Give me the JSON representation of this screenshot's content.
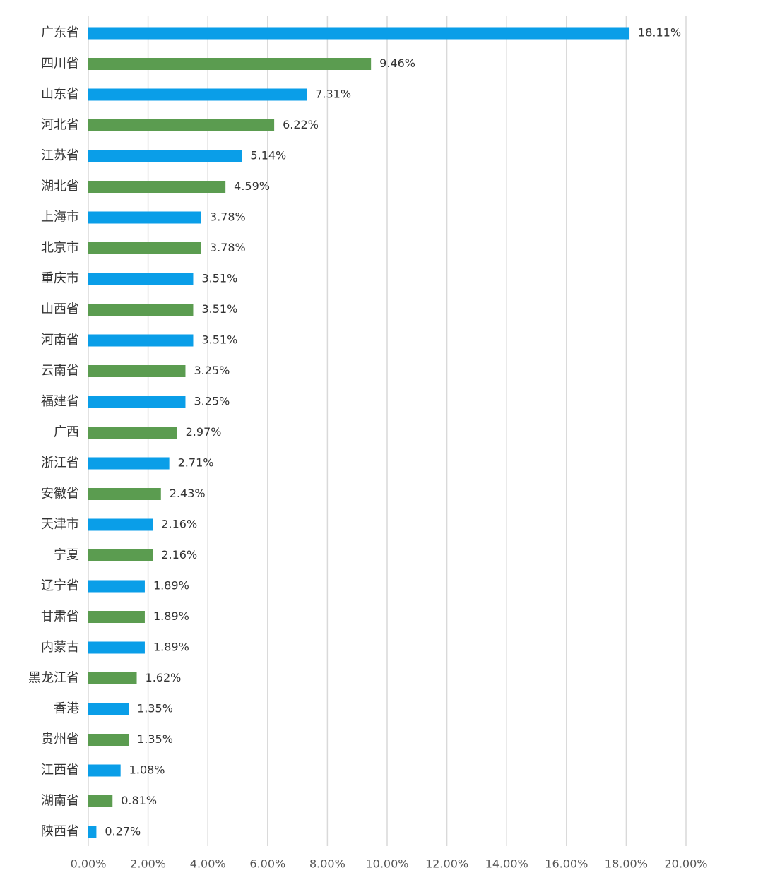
{
  "chart_data": {
    "type": "bar",
    "orientation": "horizontal",
    "title": "",
    "xlabel": "",
    "ylabel": "",
    "xlim": [
      0,
      20
    ],
    "x_ticks": [
      "0.00%",
      "2.00%",
      "4.00%",
      "6.00%",
      "8.00%",
      "10.00%",
      "12.00%",
      "14.00%",
      "16.00%",
      "18.00%",
      "20.00%"
    ],
    "grid": true,
    "legend": "none",
    "colors": {
      "blue": "#0a9ee8",
      "green": "#5b9c50"
    },
    "categories": [
      "广东省",
      "四川省",
      "山东省",
      "河北省",
      "江苏省",
      "湖北省",
      "上海市",
      "北京市",
      "重庆市",
      "山西省",
      "河南省",
      "云南省",
      "福建省",
      "广西",
      "浙江省",
      "安徽省",
      "天津市",
      "宁夏",
      "辽宁省",
      "甘肃省",
      "内蒙古",
      "黑龙江省",
      "香港",
      "贵州省",
      "江西省",
      "湖南省",
      "陕西省"
    ],
    "values": [
      18.11,
      9.46,
      7.31,
      6.22,
      5.14,
      4.59,
      3.78,
      3.78,
      3.51,
      3.51,
      3.51,
      3.25,
      3.25,
      2.97,
      2.71,
      2.43,
      2.16,
      2.16,
      1.89,
      1.89,
      1.89,
      1.62,
      1.35,
      1.35,
      1.08,
      0.81,
      0.27
    ],
    "value_labels": [
      "18.11%",
      "9.46%",
      "7.31%",
      "6.22%",
      "5.14%",
      "4.59%",
      "3.78%",
      "3.78%",
      "3.51%",
      "3.51%",
      "3.51%",
      "3.25%",
      "3.25%",
      "2.97%",
      "2.71%",
      "2.43%",
      "2.16%",
      "2.16%",
      "1.89%",
      "1.89%",
      "1.89%",
      "1.62%",
      "1.35%",
      "1.35%",
      "1.08%",
      "0.81%",
      "0.27%"
    ],
    "bar_colors": [
      "blue",
      "green",
      "blue",
      "green",
      "blue",
      "green",
      "blue",
      "green",
      "blue",
      "green",
      "blue",
      "green",
      "blue",
      "green",
      "blue",
      "green",
      "blue",
      "green",
      "blue",
      "green",
      "blue",
      "green",
      "blue",
      "green",
      "blue",
      "green",
      "blue"
    ]
  }
}
